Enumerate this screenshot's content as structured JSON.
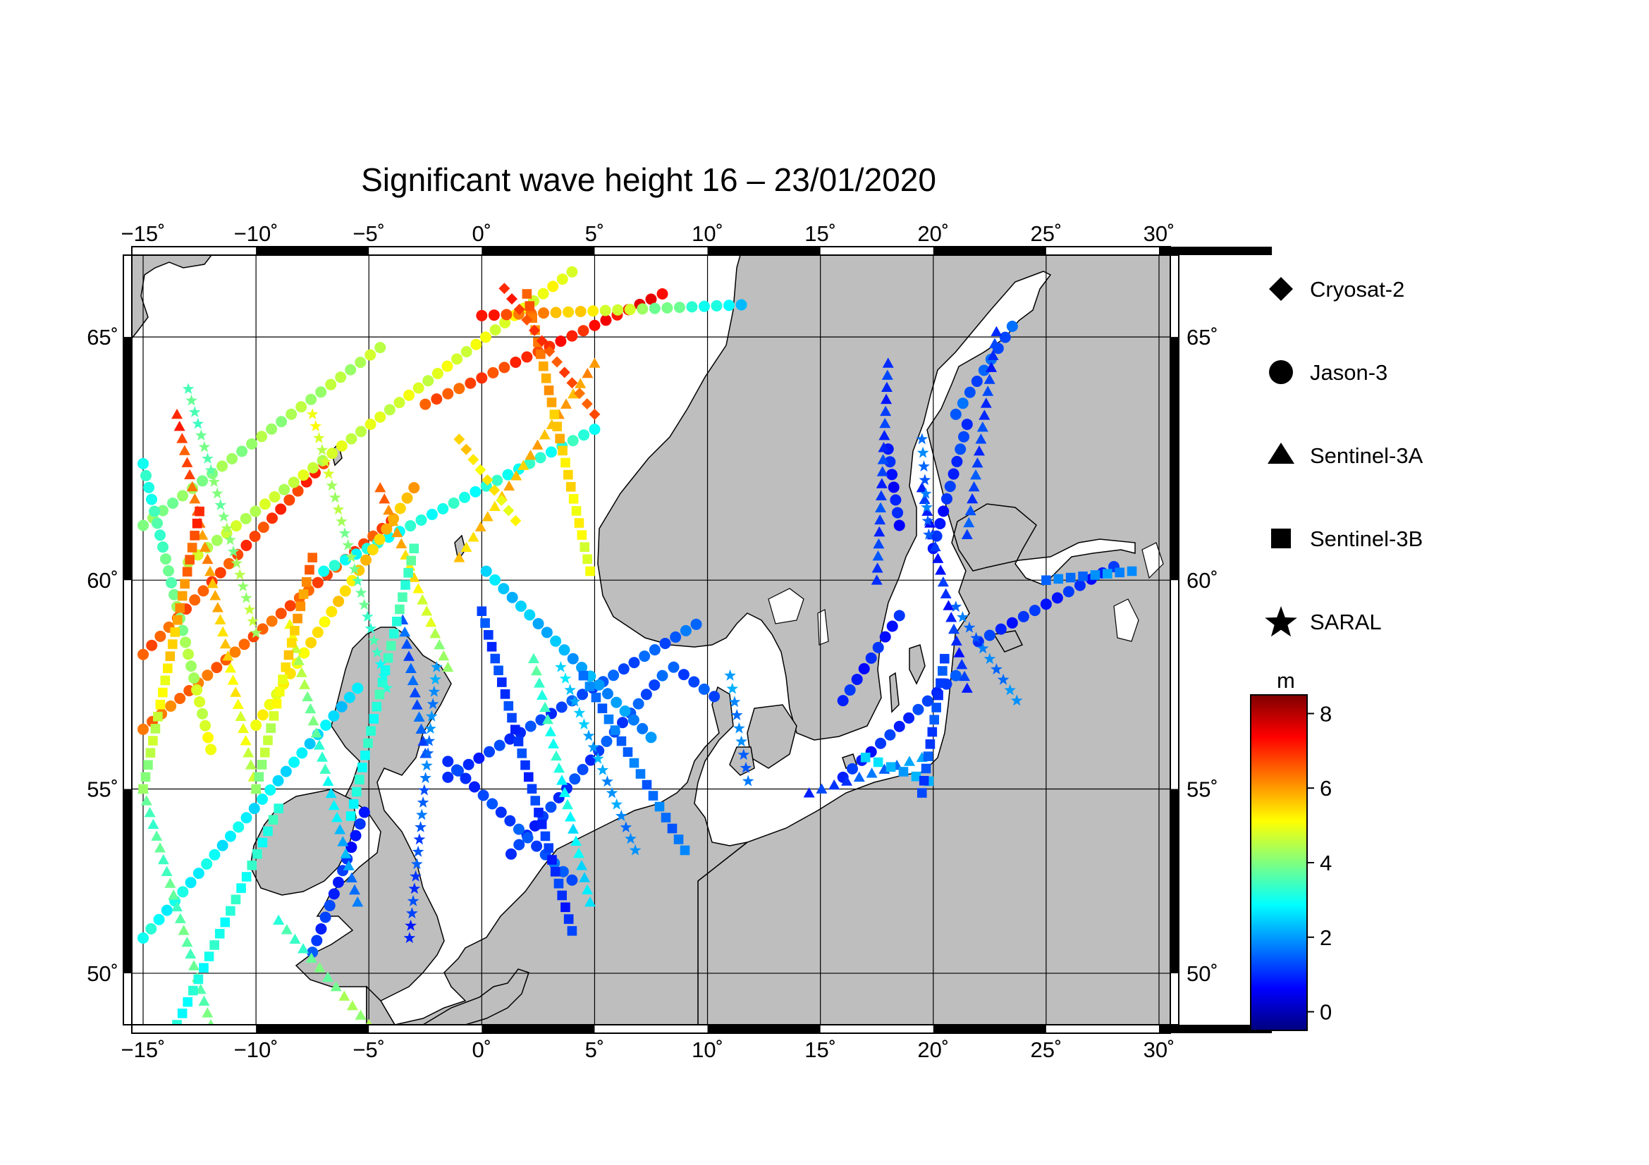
{
  "title": "Significant wave height 16 – 23/01/2020",
  "map": {
    "lon_range": [
      -15.5,
      30.5
    ],
    "lat_range": [
      48.5,
      66.5
    ],
    "lon_ticks": [
      {
        "value": -15,
        "label": "−15˚"
      },
      {
        "value": -10,
        "label": "−10˚"
      },
      {
        "value": -5,
        "label": "−5˚"
      },
      {
        "value": 0,
        "label": "0˚"
      },
      {
        "value": 5,
        "label": "5˚"
      },
      {
        "value": 10,
        "label": "10˚"
      },
      {
        "value": 15,
        "label": "15˚"
      },
      {
        "value": 20,
        "label": "20˚"
      },
      {
        "value": 25,
        "label": "25˚"
      },
      {
        "value": 30,
        "label": "30˚"
      }
    ],
    "lat_ticks": [
      {
        "value": 50,
        "label": "50˚"
      },
      {
        "value": 55,
        "label": "55˚"
      },
      {
        "value": 60,
        "label": "60˚"
      },
      {
        "value": 65,
        "label": "65˚"
      }
    ],
    "land_color": "#bebebe",
    "sea_color": "#ffffff"
  },
  "legend": {
    "missions": [
      {
        "name": "Cryosat-2",
        "symbol": "diamond"
      },
      {
        "name": "Jason-3",
        "symbol": "circle"
      },
      {
        "name": "Sentinel-3A",
        "symbol": "triangle"
      },
      {
        "name": "Sentinel-3B",
        "symbol": "square"
      },
      {
        "name": "SARAL",
        "symbol": "star"
      }
    ]
  },
  "colorbar": {
    "unit": "m",
    "range": [
      -0.5,
      8.5
    ],
    "ticks": [
      {
        "value": 0,
        "label": "0"
      },
      {
        "value": 2,
        "label": "2"
      },
      {
        "value": 4,
        "label": "4"
      },
      {
        "value": 6,
        "label": "6"
      },
      {
        "value": 8,
        "label": "8"
      }
    ],
    "colormap": [
      "#00007f",
      "#0000ff",
      "#007fff",
      "#00ffff",
      "#7fff7f",
      "#ffff00",
      "#ff7f00",
      "#ff0000",
      "#7f0000"
    ]
  },
  "tracks": [
    {
      "mission": "Jason-3",
      "from": [
        -1.5,
        55.3
      ],
      "to": [
        9.5,
        59.0
      ],
      "swh": [
        1.0,
        1.5
      ]
    },
    {
      "mission": "Jason-3",
      "from": [
        1.3,
        53.3
      ],
      "to": [
        8.0,
        57.8
      ],
      "swh": [
        1.0,
        1.4
      ]
    },
    {
      "mission": "Jason-3",
      "from": [
        -1.5,
        55.7
      ],
      "to": [
        4.0,
        52.6
      ],
      "swh": [
        1.0,
        1.5
      ]
    },
    {
      "mission": "Jason-3",
      "from": [
        0.2,
        60.2
      ],
      "to": [
        7.5,
        56.3
      ],
      "swh": [
        2.5,
        1.8
      ]
    },
    {
      "mission": "Jason-3",
      "from": [
        -15.0,
        51.0
      ],
      "to": [
        -5.5,
        57.5
      ],
      "swh": [
        3.0,
        2.5
      ]
    },
    {
      "mission": "Jason-3",
      "from": [
        -15.0,
        56.5
      ],
      "to": [
        -4.0,
        61.3
      ],
      "swh": [
        6.3,
        6.8
      ]
    },
    {
      "mission": "Jason-3",
      "from": [
        -15.0,
        58.3
      ],
      "to": [
        -7.0,
        62.5
      ],
      "swh": [
        6.5,
        7.0
      ]
    },
    {
      "mission": "Jason-3",
      "from": [
        -15.0,
        61.2
      ],
      "to": [
        -4.5,
        64.8
      ],
      "swh": [
        4.0,
        4.5
      ]
    },
    {
      "mission": "Jason-3",
      "from": [
        -13.0,
        60.4
      ],
      "to": [
        4.0,
        66.2
      ],
      "swh": [
        4.5,
        5.0
      ]
    },
    {
      "mission": "Jason-3",
      "from": [
        -7.0,
        60.2
      ],
      "to": [
        5.0,
        63.2
      ],
      "swh": [
        3.0,
        3.2
      ]
    },
    {
      "mission": "Jason-3",
      "from": [
        -2.5,
        63.7
      ],
      "to": [
        8.0,
        65.8
      ],
      "swh": [
        6.5,
        7.5
      ]
    },
    {
      "mission": "Jason-3",
      "from": [
        0.0,
        65.4
      ],
      "to": [
        11.5,
        65.6
      ],
      "swh": [
        7.2,
        2.5
      ]
    },
    {
      "mission": "Jason-3",
      "from": [
        -10.0,
        56.6
      ],
      "to": [
        -3.0,
        62.0
      ],
      "swh": [
        5.0,
        5.8
      ]
    },
    {
      "mission": "Jason-3",
      "from": [
        -12.0,
        56.0
      ],
      "to": [
        -15.0,
        62.5
      ],
      "swh": [
        5.0,
        3.0
      ]
    },
    {
      "mission": "Jason-3",
      "from": [
        -5.2,
        54.4
      ],
      "to": [
        -7.5,
        50.6
      ],
      "swh": [
        0.8,
        1.2
      ]
    },
    {
      "mission": "Jason-3",
      "from": [
        16.0,
        57.2
      ],
      "to": [
        18.5,
        59.2
      ],
      "swh": [
        0.9,
        0.9
      ]
    },
    {
      "mission": "Jason-3",
      "from": [
        16.0,
        55.3
      ],
      "to": [
        21.0,
        57.8
      ],
      "swh": [
        0.9,
        1.2
      ]
    },
    {
      "mission": "Jason-3",
      "from": [
        20.0,
        60.7
      ],
      "to": [
        21.5,
        63.3
      ],
      "swh": [
        0.8,
        1.2
      ]
    },
    {
      "mission": "Jason-3",
      "from": [
        21.0,
        63.5
      ],
      "to": [
        23.5,
        65.2
      ],
      "swh": [
        1.4,
        1.4
      ]
    },
    {
      "mission": "Jason-3",
      "from": [
        18.0,
        62.8
      ],
      "to": [
        18.5,
        61.2
      ],
      "swh": [
        0.8,
        0.8
      ]
    },
    {
      "mission": "Jason-3",
      "from": [
        22.0,
        58.6
      ],
      "to": [
        28.0,
        60.3
      ],
      "swh": [
        1.0,
        0.9
      ]
    },
    {
      "mission": "Jason-3",
      "from": [
        10.3,
        57.3
      ],
      "to": [
        8.5,
        58.0
      ],
      "swh": [
        1.2,
        1.4
      ]
    },
    {
      "mission": "Sentinel-3A",
      "from": [
        -3.5,
        59.1
      ],
      "to": [
        -2.5,
        55.9
      ],
      "swh": [
        1.4,
        1.4
      ]
    },
    {
      "mission": "Sentinel-3A",
      "from": [
        2.3,
        58.2
      ],
      "to": [
        4.8,
        52.0
      ],
      "swh": [
        3.5,
        2.5
      ]
    },
    {
      "mission": "Sentinel-3A",
      "from": [
        -13.5,
        63.5
      ],
      "to": [
        -10.0,
        55.0
      ],
      "swh": [
        7.0,
        4.5
      ]
    },
    {
      "mission": "Sentinel-3A",
      "from": [
        -8.5,
        59.0
      ],
      "to": [
        -5.5,
        52.0
      ],
      "swh": [
        5.0,
        1.5
      ]
    },
    {
      "mission": "Sentinel-3A",
      "from": [
        -15.0,
        55.0
      ],
      "to": [
        -12.0,
        48.5
      ],
      "swh": [
        3.5,
        3.8
      ]
    },
    {
      "mission": "Sentinel-3A",
      "from": [
        -9.0,
        51.5
      ],
      "to": [
        -5.0,
        48.5
      ],
      "swh": [
        3.2,
        4.5
      ]
    },
    {
      "mission": "Sentinel-3A",
      "from": [
        18.0,
        64.5
      ],
      "to": [
        17.5,
        60.0
      ],
      "swh": [
        1.0,
        1.2
      ]
    },
    {
      "mission": "Sentinel-3A",
      "from": [
        19.5,
        62.0
      ],
      "to": [
        21.5,
        57.5
      ],
      "swh": [
        0.9,
        1.0
      ]
    },
    {
      "mission": "Sentinel-3A",
      "from": [
        22.8,
        65.1
      ],
      "to": [
        21.5,
        61.0
      ],
      "swh": [
        1.0,
        1.3
      ]
    },
    {
      "mission": "Sentinel-3A",
      "from": [
        14.5,
        54.9
      ],
      "to": [
        19.5,
        55.8
      ],
      "swh": [
        0.9,
        2.0
      ]
    },
    {
      "mission": "Sentinel-3A",
      "from": [
        5.0,
        64.5
      ],
      "to": [
        -1.0,
        60.5
      ],
      "swh": [
        6.0,
        5.5
      ]
    },
    {
      "mission": "Sentinel-3A",
      "from": [
        -4.5,
        62.0
      ],
      "to": [
        -1.5,
        58.0
      ],
      "swh": [
        6.5,
        4.0
      ]
    },
    {
      "mission": "Sentinel-3B",
      "from": [
        0.0,
        59.3
      ],
      "to": [
        4.0,
        51.2
      ],
      "swh": [
        1.2,
        1.0
      ]
    },
    {
      "mission": "Sentinel-3B",
      "from": [
        4.5,
        57.8
      ],
      "to": [
        9.0,
        53.4
      ],
      "swh": [
        1.6,
        1.6
      ]
    },
    {
      "mission": "Sentinel-3B",
      "from": [
        2.0,
        65.8
      ],
      "to": [
        4.8,
        60.2
      ],
      "swh": [
        6.5,
        4.8
      ]
    },
    {
      "mission": "Sentinel-3B",
      "from": [
        -12.5,
        61.5
      ],
      "to": [
        -15.0,
        55.0
      ],
      "swh": [
        7.0,
        4.0
      ]
    },
    {
      "mission": "Sentinel-3B",
      "from": [
        -9.0,
        54.5
      ],
      "to": [
        -13.5,
        48.5
      ],
      "swh": [
        3.2,
        3.0
      ]
    },
    {
      "mission": "Sentinel-3B",
      "from": [
        -7.5,
        60.5
      ],
      "to": [
        -10.0,
        55.0
      ],
      "swh": [
        6.5,
        4.0
      ]
    },
    {
      "mission": "Sentinel-3B",
      "from": [
        -3.0,
        60.7
      ],
      "to": [
        -5.8,
        54.3
      ],
      "swh": [
        3.5,
        3.0
      ]
    },
    {
      "mission": "Sentinel-3B",
      "from": [
        17.0,
        55.8
      ],
      "to": [
        19.8,
        55.2
      ],
      "swh": [
        2.5,
        2.0
      ]
    },
    {
      "mission": "Sentinel-3B",
      "from": [
        20.5,
        58.2
      ],
      "to": [
        19.5,
        54.9
      ],
      "swh": [
        1.2,
        1.3
      ]
    },
    {
      "mission": "Sentinel-3B",
      "from": [
        25.0,
        60.0
      ],
      "to": [
        28.8,
        60.2
      ],
      "swh": [
        1.5,
        2.0
      ]
    },
    {
      "mission": "SARAL",
      "from": [
        3.5,
        58.0
      ],
      "to": [
        6.8,
        53.4
      ],
      "swh": [
        2.5,
        1.7
      ]
    },
    {
      "mission": "SARAL",
      "from": [
        -2.0,
        58.0
      ],
      "to": [
        -3.2,
        51.0
      ],
      "swh": [
        2.0,
        1.0
      ]
    },
    {
      "mission": "SARAL",
      "from": [
        -13.0,
        64.0
      ],
      "to": [
        -10.0,
        58.8
      ],
      "swh": [
        3.5,
        4.5
      ]
    },
    {
      "mission": "SARAL",
      "from": [
        -7.5,
        63.5
      ],
      "to": [
        -4.2,
        57.5
      ],
      "swh": [
        5.0,
        3.0
      ]
    },
    {
      "mission": "SARAL",
      "from": [
        11.0,
        57.8
      ],
      "to": [
        11.8,
        55.2
      ],
      "swh": [
        2.0,
        1.5
      ]
    },
    {
      "mission": "SARAL",
      "from": [
        21.0,
        59.4
      ],
      "to": [
        23.7,
        57.2
      ],
      "swh": [
        1.5,
        1.8
      ]
    },
    {
      "mission": "SARAL",
      "from": [
        19.5,
        63.0
      ],
      "to": [
        19.8,
        61.0
      ],
      "swh": [
        1.6,
        1.6
      ]
    },
    {
      "mission": "Cryosat-2",
      "from": [
        1.0,
        65.9
      ],
      "to": [
        5.0,
        63.5
      ],
      "swh": [
        7.0,
        6.5
      ]
    },
    {
      "mission": "Cryosat-2",
      "from": [
        -1.0,
        63.0
      ],
      "to": [
        1.5,
        61.3
      ],
      "swh": [
        5.5,
        5.0
      ]
    }
  ]
}
